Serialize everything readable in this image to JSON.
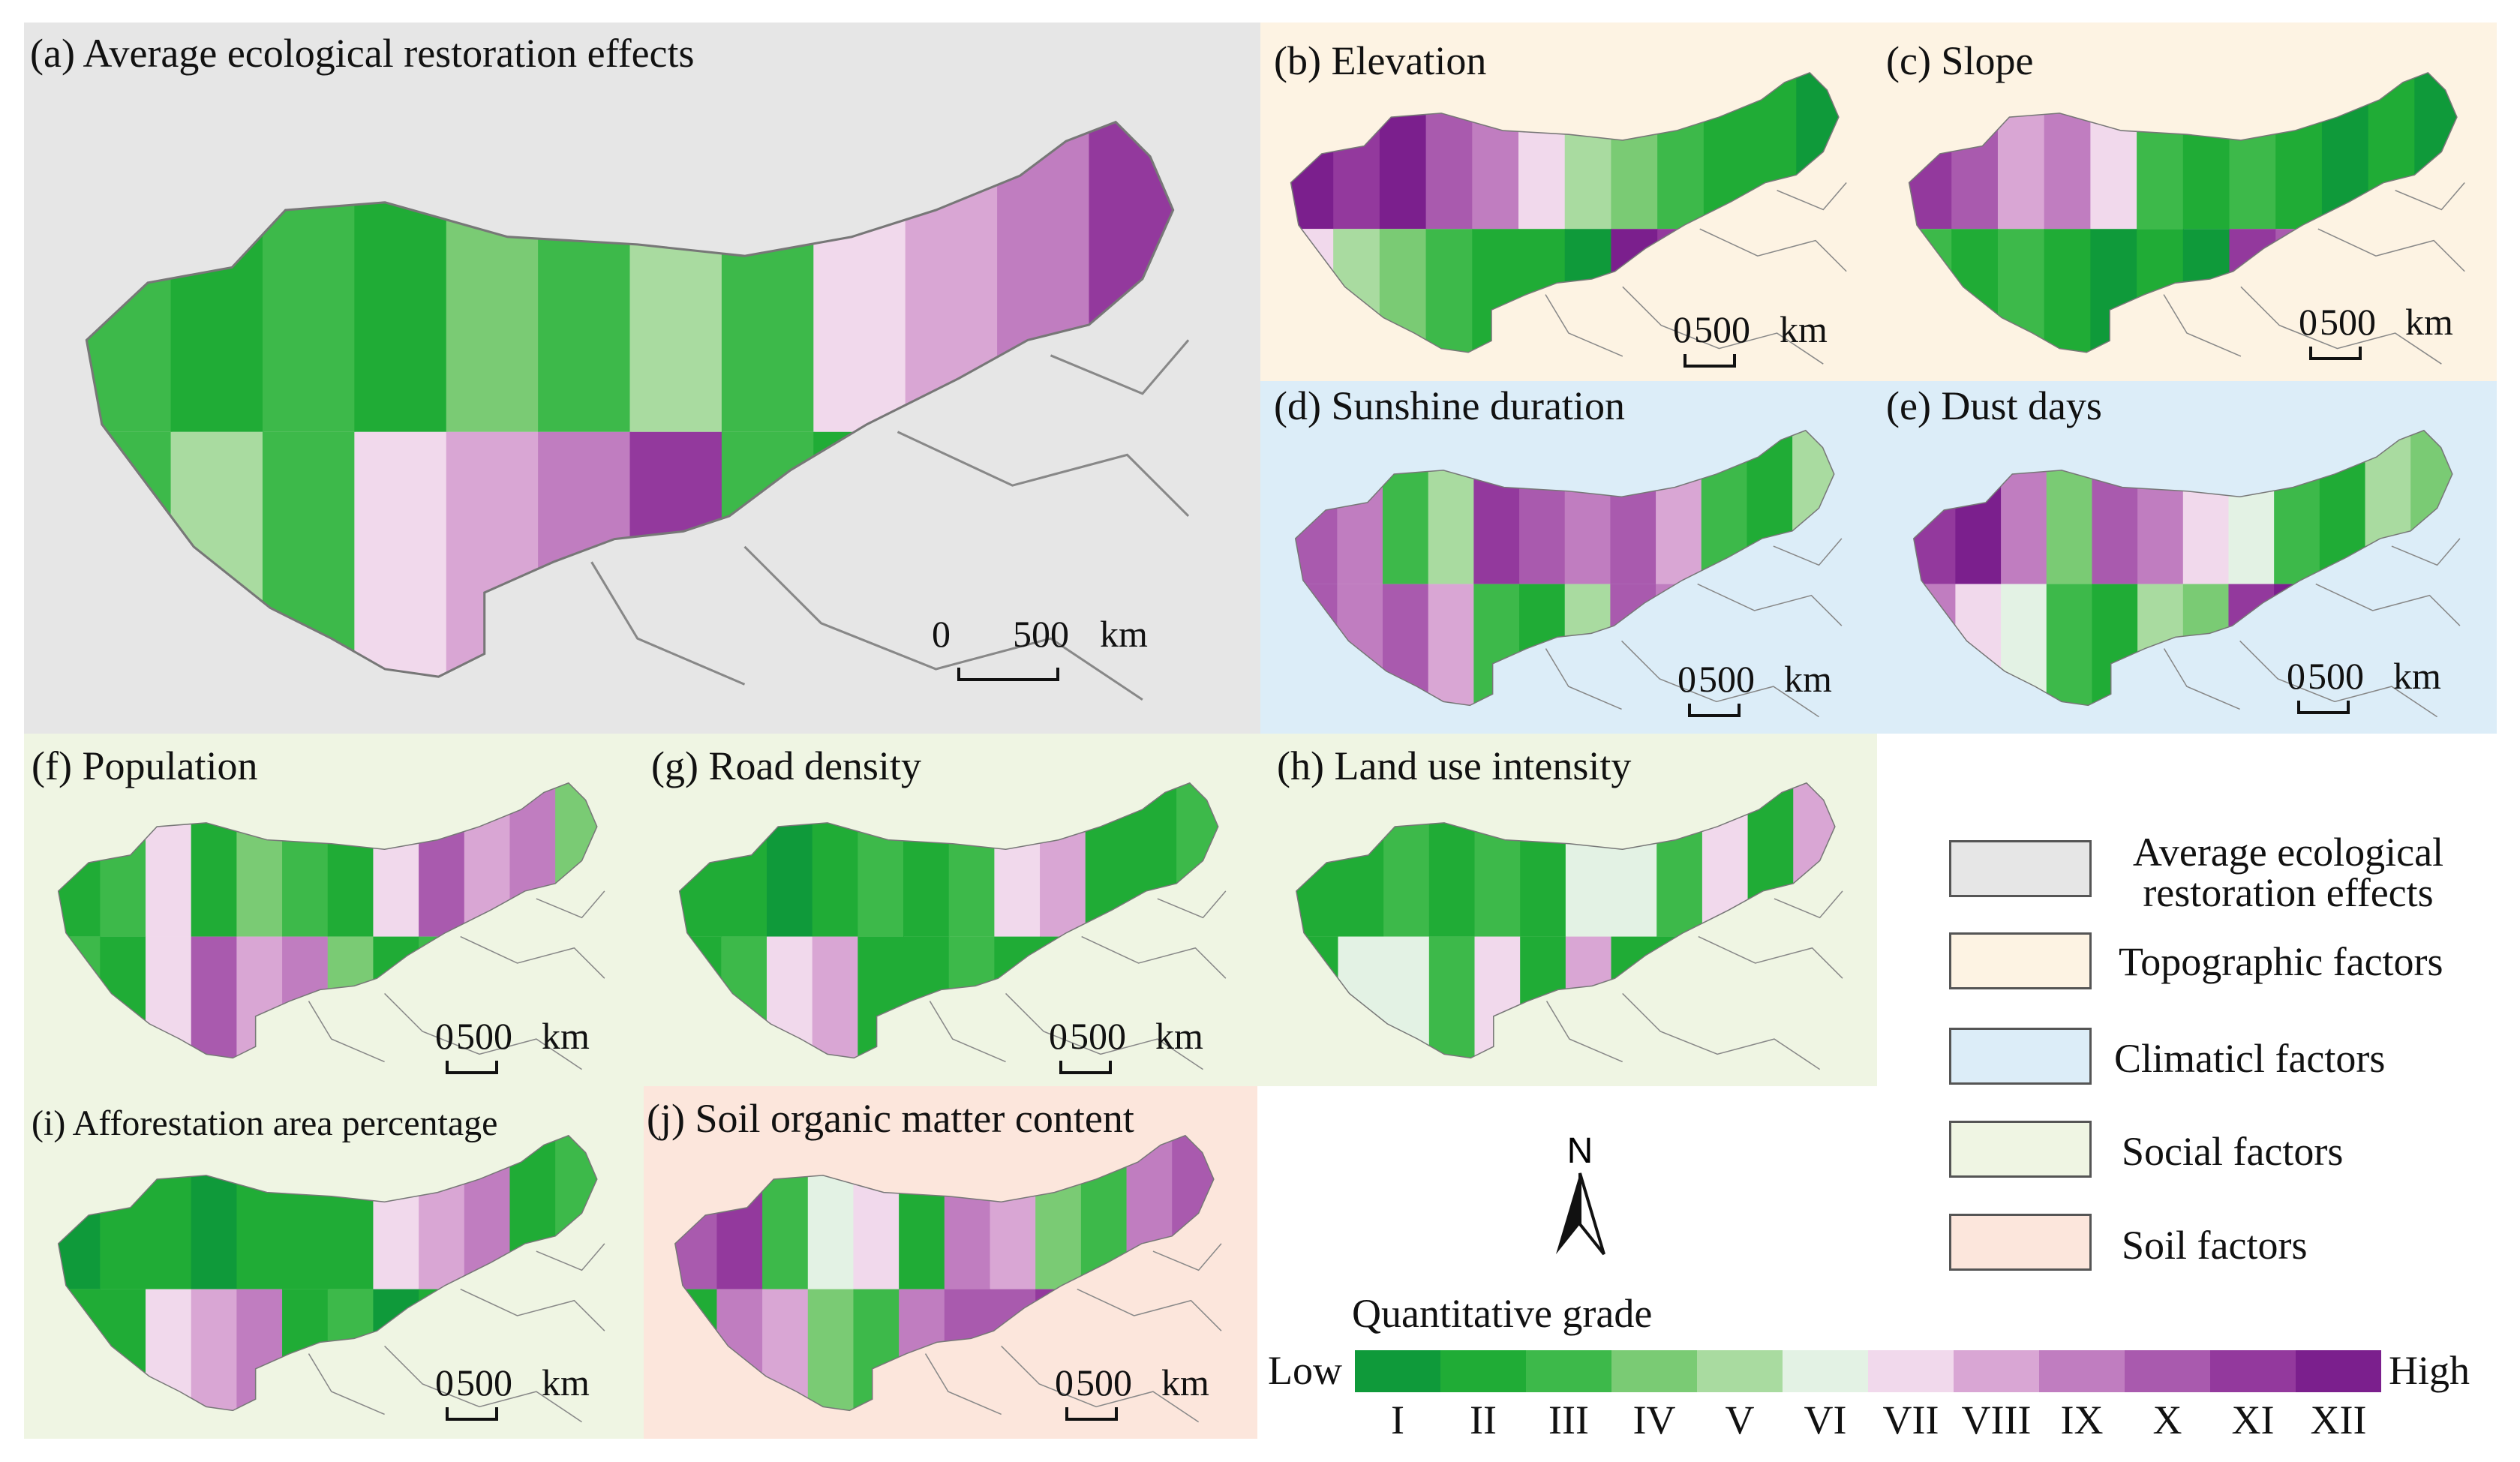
{
  "panels": [
    {
      "id": "a",
      "title": "(a) Average ecological restoration effects",
      "bg": "#e6e6e6",
      "scale": {
        "zero": "0",
        "value": "500",
        "unit": "km"
      }
    },
    {
      "id": "b",
      "title": "(b) Elevation",
      "bg": "#fdf3e3",
      "scale": {
        "zero": "0",
        "value": "500",
        "unit": "km"
      }
    },
    {
      "id": "c",
      "title": "(c) Slope",
      "bg": "#fdf3e3",
      "scale": {
        "zero": "0",
        "value": "500",
        "unit": "km"
      }
    },
    {
      "id": "d",
      "title": "(d) Sunshine duration",
      "bg": "#dcedf8",
      "scale": {
        "zero": "0",
        "value": "500",
        "unit": "km"
      }
    },
    {
      "id": "e",
      "title": "(e) Dust days",
      "bg": "#dcedf8",
      "scale": {
        "zero": "0",
        "value": "500",
        "unit": "km"
      }
    },
    {
      "id": "f",
      "title": "(f) Population",
      "bg": "#eff5e3",
      "scale": {
        "zero": "0",
        "value": "500",
        "unit": "km"
      }
    },
    {
      "id": "g",
      "title": "(g) Road density",
      "bg": "#eff5e3",
      "scale": {
        "zero": "0",
        "value": "500",
        "unit": "km"
      }
    },
    {
      "id": "h",
      "title": "(h) Land use intensity",
      "bg": "#eff5e3",
      "scale": {
        "zero": "0",
        "value": "500",
        "unit": "km"
      }
    },
    {
      "id": "i",
      "title": "(i) Afforestation area percentage",
      "bg": "#eff5e3",
      "scale": {
        "zero": "0",
        "value": "500",
        "unit": "km"
      }
    },
    {
      "id": "j",
      "title": "(j) Soil organic matter content",
      "bg": "#fce6dc",
      "scale": {
        "zero": "0",
        "value": "500",
        "unit": "km"
      }
    }
  ],
  "legend": {
    "categories": [
      {
        "label": "Average ecological restoration effects",
        "line1": "Average ecological",
        "line2": "restoration effects",
        "color": "#e6e6e6"
      },
      {
        "label": "Topographic factors",
        "color": "#fdf3e3"
      },
      {
        "label": "Climaticl factors",
        "color": "#dcedf8"
      },
      {
        "label": "Social factors",
        "color": "#eff5e3"
      },
      {
        "label": "Soil factors",
        "color": "#fce6dc"
      }
    ],
    "north_label": "N",
    "scale_title": "Quantitative grade",
    "low_label": "Low",
    "high_label": "High",
    "grades": [
      "I",
      "II",
      "III",
      "IV",
      "V",
      "VI",
      "VII",
      "VIII",
      "IX",
      "X",
      "XI",
      "XII"
    ],
    "grade_colors": [
      "#0f9a3a",
      "#20ac36",
      "#3db94a",
      "#7acb74",
      "#a9dba0",
      "#e3f2e4",
      "#f1d9ec",
      "#d9a6d4",
      "#c07dc0",
      "#a95aae",
      "#93399d",
      "#7b1f8d"
    ]
  }
}
